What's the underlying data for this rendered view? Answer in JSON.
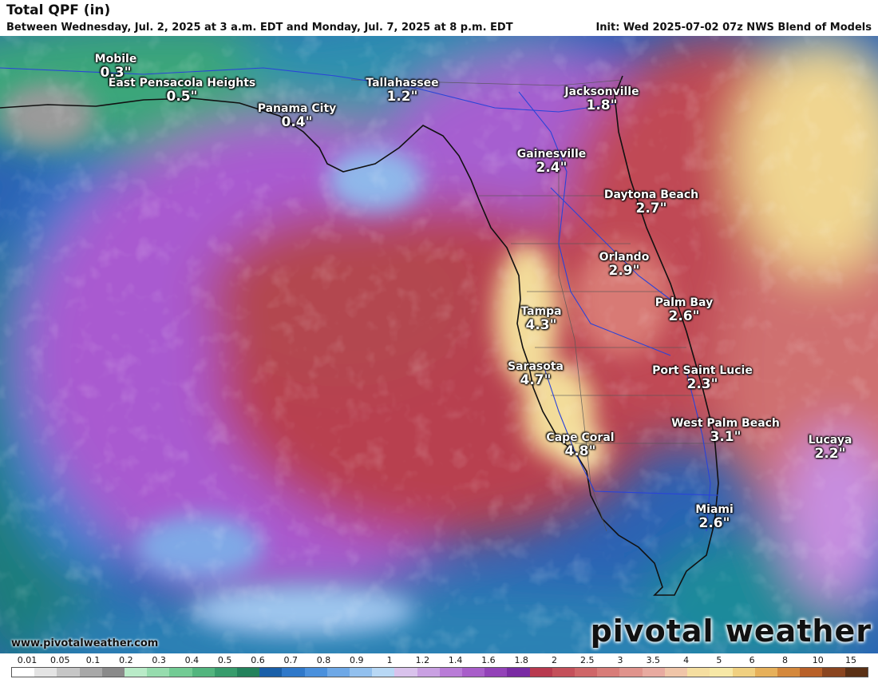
{
  "header": {
    "title": "Total QPF (in)",
    "subtitle": "Between Wednesday, Jul. 2, 2025 at 3 a.m. EDT and Monday, Jul. 7, 2025 at 8 p.m. EDT",
    "init": "Init: Wed 2025-07-02 07z NWS Blend of Models"
  },
  "cities": [
    {
      "name": "Mobile",
      "value": "0.3\""
    },
    {
      "name": "East Pensacola Heights",
      "value": "0.5\""
    },
    {
      "name": "Panama City",
      "value": "0.4\""
    },
    {
      "name": "Tallahassee",
      "value": "1.2\""
    },
    {
      "name": "Jacksonville",
      "value": "1.8\""
    },
    {
      "name": "Gainesville",
      "value": "2.4\""
    },
    {
      "name": "Daytona Beach",
      "value": "2.7\""
    },
    {
      "name": "Orlando",
      "value": "2.9\""
    },
    {
      "name": "Tampa",
      "value": "4.3\""
    },
    {
      "name": "Palm Bay",
      "value": "2.6\""
    },
    {
      "name": "Sarasota",
      "value": "4.7\""
    },
    {
      "name": "Port Saint Lucie",
      "value": "2.3\""
    },
    {
      "name": "West Palm Beach",
      "value": "3.1\""
    },
    {
      "name": "Cape Coral",
      "value": "4.8\""
    },
    {
      "name": "Lucaya",
      "value": "2.2\""
    },
    {
      "name": "Miami",
      "value": "2.6\""
    }
  ],
  "footer": {
    "website": "www.pivotalweather.com",
    "brand": "pivotal weather"
  },
  "legend": {
    "labels": [
      "0.01",
      "0.05",
      "0.1",
      "0.2",
      "0.3",
      "0.4",
      "0.5",
      "0.6",
      "0.7",
      "0.8",
      "0.9",
      "1",
      "1.2",
      "1.4",
      "1.6",
      "1.8",
      "2",
      "2.5",
      "3",
      "3.5",
      "4",
      "5",
      "6",
      "8",
      "10",
      "15"
    ],
    "colors": [
      "#ffffff",
      "#e4e4e4",
      "#c6c6c6",
      "#a8a8a8",
      "#8a8a8a",
      "#b9ebc8",
      "#96dcae",
      "#72cb94",
      "#52b57e",
      "#379c6c",
      "#23825c",
      "#1a5fa8",
      "#2f78c9",
      "#4a90dc",
      "#6ea8e6",
      "#92c0ee",
      "#b8d8f5",
      "#d9c2ec",
      "#c9a0e2",
      "#b97cd7",
      "#a85ec9",
      "#9342b8",
      "#7a2ba3",
      "#b83a4f",
      "#c4505a",
      "#cf6668",
      "#d87c78",
      "#e0938c",
      "#e8aaa0",
      "#f0c5a8",
      "#f5dea0",
      "#f7e8a6",
      "#f0d080",
      "#e6b05a",
      "#d4883c",
      "#b86028",
      "#8a4520",
      "#5a3015"
    ]
  }
}
